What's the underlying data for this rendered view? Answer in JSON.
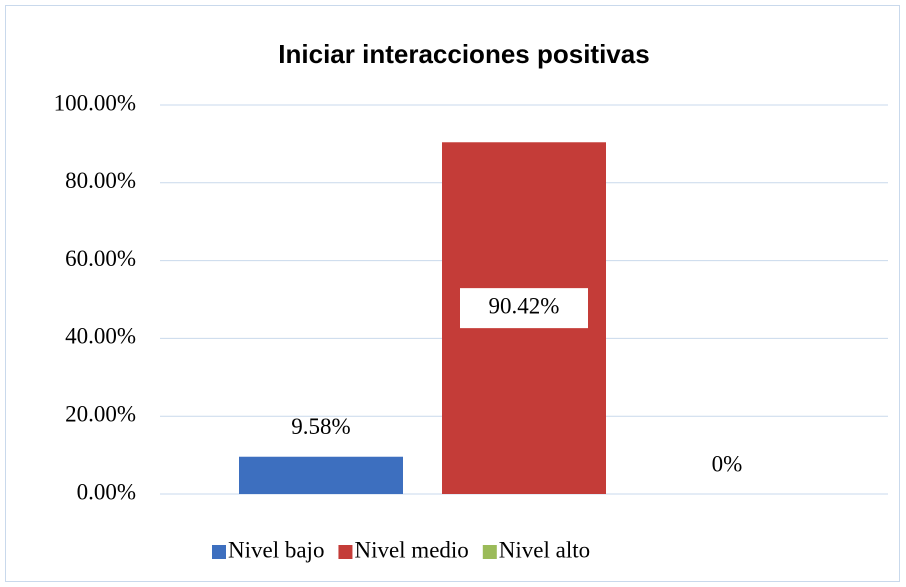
{
  "chart_data": {
    "type": "bar",
    "title": "Iniciar interacciones positivas",
    "categories": [
      null
    ],
    "series": [
      {
        "name": "Nivel bajo",
        "color": "#3d6fbf",
        "values": [
          9.58
        ],
        "value_labels": [
          "9.58%"
        ]
      },
      {
        "name": "Nivel medio",
        "color": "#c43c38",
        "values": [
          90.42
        ],
        "value_labels": [
          "90.42%"
        ]
      },
      {
        "name": "Nivel alto",
        "color": "#9bbb59",
        "values": [
          0
        ],
        "value_labels": [
          "0%"
        ]
      }
    ],
    "ylim": [
      0,
      100
    ],
    "yticks": [
      {
        "value": 0,
        "label": "0.00%"
      },
      {
        "value": 20,
        "label": "20.00%"
      },
      {
        "value": 40,
        "label": "40.00%"
      },
      {
        "value": 60,
        "label": "60.00%"
      },
      {
        "value": 80,
        "label": "80.00%"
      },
      {
        "value": 100,
        "label": "100.00%"
      }
    ],
    "grid": true,
    "legend": "bottom"
  }
}
